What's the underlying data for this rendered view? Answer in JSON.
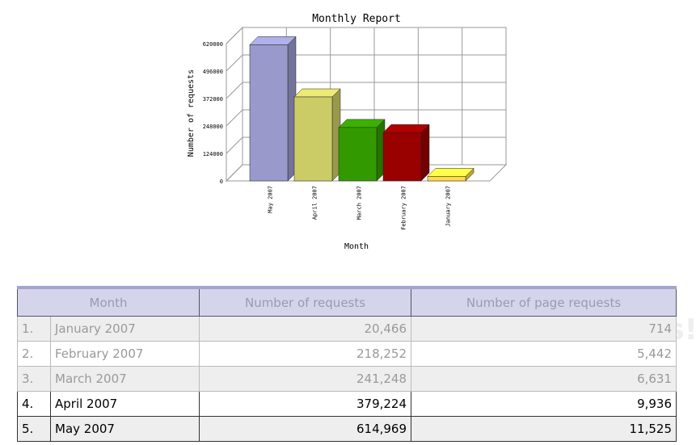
{
  "chart_data": {
    "type": "bar",
    "title": "Monthly Report",
    "xlabel": "Month",
    "ylabel": "Number of requests",
    "categories": [
      "May 2007",
      "April 2007",
      "March 2007",
      "February 2007",
      "January 2007"
    ],
    "values": [
      614969,
      379224,
      241248,
      218252,
      20466
    ],
    "colors": [
      "#9999cc",
      "#cccc66",
      "#339900",
      "#990000",
      "#ffdd44"
    ],
    "yticks": [
      "0",
      "124000",
      "248000",
      "372000",
      "496000",
      "620000"
    ],
    "ylim": [
      0,
      620000
    ],
    "grid": true
  },
  "table": {
    "headers": [
      "Month",
      "Number of requests",
      "Number of page requests"
    ],
    "rows": [
      {
        "idx": "1.",
        "month": "January 2007",
        "requests": "20,466",
        "pages": "714"
      },
      {
        "idx": "2.",
        "month": "February 2007",
        "requests": "218,252",
        "pages": "5,442"
      },
      {
        "idx": "3.",
        "month": "March 2007",
        "requests": "241,248",
        "pages": "6,631"
      },
      {
        "idx": "4.",
        "month": "April 2007",
        "requests": "379,224",
        "pages": "9,936"
      },
      {
        "idx": "5.",
        "month": "May 2007",
        "requests": "614,969",
        "pages": "11,525"
      }
    ]
  },
  "watermark": "Protect more of your memories for less!"
}
